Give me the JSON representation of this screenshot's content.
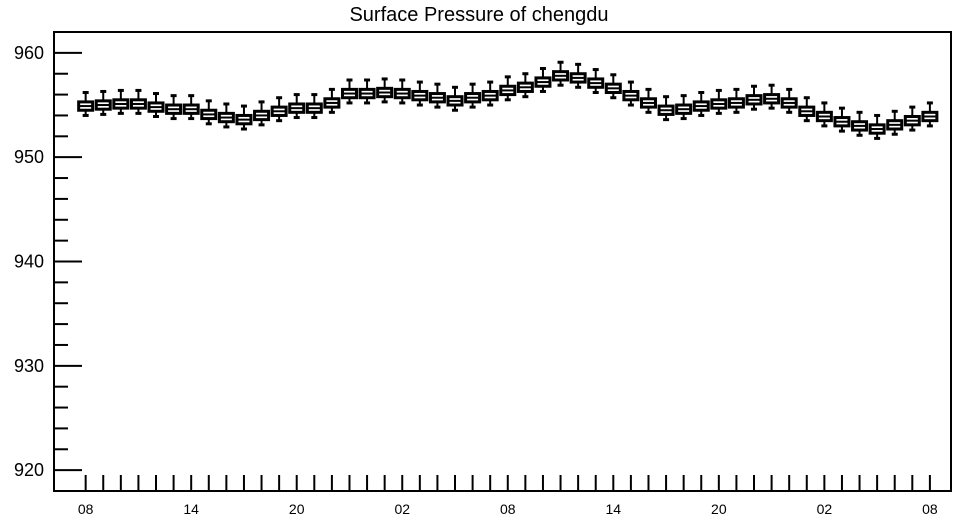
{
  "chart_data": {
    "type": "boxplot",
    "title": "Surface Pressure of chengdu",
    "xlabel": "",
    "ylabel": "",
    "ylim": [
      918,
      962
    ],
    "yticks": [
      920,
      930,
      940,
      950,
      960
    ],
    "xtick_labels": [
      "08",
      "14",
      "20",
      "02",
      "08",
      "14",
      "20",
      "02",
      "08"
    ],
    "xtick_positions": [
      0,
      6,
      12,
      18,
      24,
      30,
      36,
      42,
      48
    ],
    "x_range": [
      -1.8,
      49.2
    ],
    "grid": false,
    "box_color": "#000000",
    "series": [
      {
        "x": [
          0,
          1,
          2,
          3,
          4,
          5,
          6,
          7,
          8,
          9,
          10,
          11,
          12,
          13,
          14,
          15,
          16,
          17,
          18,
          19,
          20,
          21,
          22,
          23,
          24,
          25,
          26,
          27,
          28,
          29,
          30,
          31,
          32,
          33,
          34,
          35,
          36,
          37,
          38,
          39,
          40,
          41,
          42,
          43,
          44,
          45,
          46,
          47,
          48
        ],
        "median": [
          954.9,
          955.0,
          955.1,
          955.1,
          954.8,
          954.6,
          954.6,
          954.1,
          953.8,
          953.6,
          954.0,
          954.4,
          954.7,
          954.7,
          955.2,
          956.1,
          956.1,
          956.2,
          956.1,
          955.9,
          955.7,
          955.4,
          955.7,
          955.9,
          956.4,
          956.7,
          957.2,
          957.8,
          957.6,
          957.1,
          956.6,
          955.9,
          955.2,
          954.5,
          954.6,
          954.9,
          955.1,
          955.2,
          955.5,
          955.6,
          955.2,
          954.4,
          953.9,
          953.4,
          953.0,
          952.7,
          953.1,
          953.5,
          953.9
        ],
        "q1": [
          954.5,
          954.6,
          954.7,
          954.7,
          954.4,
          954.2,
          954.2,
          953.7,
          953.4,
          953.2,
          953.6,
          954.0,
          954.3,
          954.3,
          954.8,
          955.7,
          955.7,
          955.8,
          955.7,
          955.5,
          955.3,
          955.0,
          955.3,
          955.5,
          956.0,
          956.3,
          956.8,
          957.4,
          957.2,
          956.7,
          956.2,
          955.5,
          954.8,
          954.1,
          954.2,
          954.5,
          954.7,
          954.8,
          955.1,
          955.2,
          954.8,
          954.0,
          953.5,
          953.0,
          952.6,
          952.3,
          952.7,
          953.1,
          953.5
        ],
        "q3": [
          955.3,
          955.4,
          955.5,
          955.5,
          955.2,
          955.0,
          955.0,
          954.5,
          954.2,
          954.0,
          954.4,
          954.8,
          955.1,
          955.1,
          955.6,
          956.5,
          956.5,
          956.6,
          956.5,
          956.3,
          956.1,
          955.8,
          956.1,
          956.3,
          956.8,
          957.1,
          957.6,
          958.2,
          958.0,
          957.5,
          957.0,
          956.3,
          955.6,
          954.9,
          955.0,
          955.3,
          955.5,
          955.6,
          955.9,
          956.0,
          955.6,
          954.8,
          954.3,
          953.8,
          953.4,
          953.1,
          953.5,
          953.9,
          954.3
        ],
        "whisker_low": [
          954.0,
          954.1,
          954.2,
          954.2,
          953.9,
          953.7,
          953.7,
          953.2,
          952.9,
          952.7,
          953.1,
          953.5,
          953.8,
          953.8,
          954.3,
          955.2,
          955.2,
          955.3,
          955.2,
          955.0,
          954.8,
          954.5,
          954.8,
          955.0,
          955.5,
          955.8,
          956.3,
          956.9,
          956.7,
          956.2,
          955.7,
          955.0,
          954.3,
          953.6,
          953.7,
          954.0,
          954.2,
          954.3,
          954.6,
          954.7,
          954.3,
          953.5,
          953.0,
          952.5,
          952.1,
          951.8,
          952.2,
          952.6,
          953.0
        ],
        "whisker_high": [
          956.2,
          956.3,
          956.4,
          956.4,
          956.1,
          955.9,
          955.9,
          955.4,
          955.1,
          954.9,
          955.3,
          955.7,
          956.0,
          956.0,
          956.5,
          957.4,
          957.4,
          957.5,
          957.4,
          957.2,
          957.0,
          956.7,
          957.0,
          957.2,
          957.7,
          958.0,
          958.5,
          959.1,
          958.9,
          958.4,
          957.9,
          957.2,
          956.5,
          955.8,
          955.9,
          956.2,
          956.4,
          956.5,
          956.8,
          956.9,
          956.5,
          955.7,
          955.2,
          954.7,
          954.3,
          954.0,
          954.4,
          954.8,
          955.2
        ]
      }
    ]
  }
}
